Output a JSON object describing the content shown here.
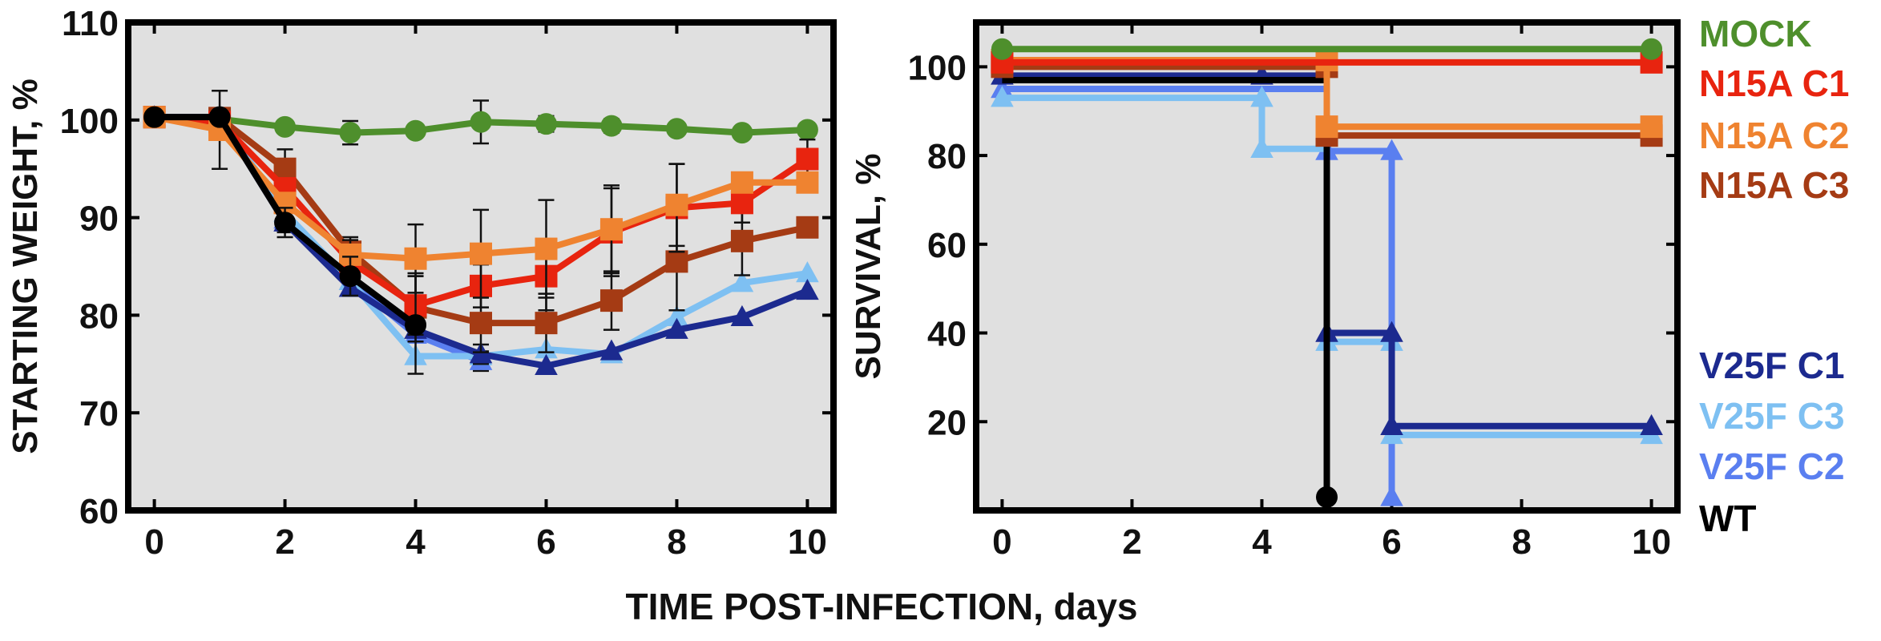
{
  "figure": {
    "shared_xlabel": "TIME POST-INFECTION, days"
  },
  "colors": {
    "MOCK": "#4e8f2c",
    "N15A C1": "#e8240f",
    "N15A C2": "#ef8330",
    "N15A C3": "#a53b14",
    "V25F C1": "#1c2a8f",
    "V25F C3": "#7ec0f2",
    "V25F C2": "#5a7ff0",
    "WT": "#000000",
    "panel_bg": "#e0e0e0"
  },
  "chart_data": [
    {
      "type": "line",
      "ylabel": "STARTING WEIGHT, %",
      "xlim": [
        -0.4,
        10.4
      ],
      "ylim": [
        60,
        110
      ],
      "xticks": [
        0,
        2,
        4,
        6,
        8,
        10
      ],
      "yticks": [
        60,
        70,
        80,
        90,
        100,
        110
      ],
      "grid": false,
      "series": [
        {
          "name": "MOCK",
          "marker": "circle",
          "x": [
            0,
            1,
            2,
            3,
            4,
            5,
            6,
            7,
            8,
            9,
            10
          ],
          "y": [
            100.3,
            100.1,
            99.3,
            98.7,
            98.9,
            99.8,
            99.6,
            99.4,
            99.1,
            98.7,
            99.0
          ],
          "err": [
            0,
            0,
            0.6,
            1.2,
            0,
            2.2,
            0.8,
            0.7,
            0.6,
            0.6,
            0.4
          ]
        },
        {
          "name": "N15A C1",
          "marker": "square",
          "x": [
            0,
            1,
            2,
            3,
            4,
            5,
            6,
            7,
            8,
            9,
            10
          ],
          "y": [
            100.3,
            99.8,
            93.0,
            85.5,
            81.0,
            83.0,
            84.0,
            88.5,
            91.0,
            91.5,
            96.0
          ],
          "err": [
            0,
            0,
            1.0,
            1.5,
            3.0,
            2.2,
            3.5,
            4.5,
            4.5,
            2.0,
            2.0
          ]
        },
        {
          "name": "N15A C2",
          "marker": "square",
          "x": [
            0,
            1,
            2,
            3,
            4,
            5,
            6,
            7,
            8,
            9,
            10
          ],
          "y": [
            100.3,
            99.0,
            91.5,
            86.2,
            85.8,
            86.3,
            86.8,
            88.8,
            91.3,
            93.6,
            93.6
          ],
          "err": [
            0,
            4.0,
            0.8,
            1.5,
            3.5,
            4.5,
            5.0,
            4.5,
            4.2,
            0,
            1.0
          ]
        },
        {
          "name": "N15A C3",
          "marker": "square",
          "x": [
            0,
            1,
            2,
            3,
            4,
            5,
            6,
            7,
            8,
            9,
            10
          ],
          "y": [
            100.3,
            100.2,
            95.0,
            86.5,
            80.8,
            79.2,
            79.2,
            81.5,
            85.5,
            87.6,
            89.0
          ],
          "err": [
            0,
            0,
            2.0,
            1.5,
            3.5,
            3.0,
            3.0,
            3.0,
            5.0,
            3.5,
            0
          ]
        },
        {
          "name": "V25F C1",
          "marker": "triangle",
          "x": [
            0,
            1,
            2,
            3,
            4,
            5,
            6,
            7,
            8,
            9,
            10
          ],
          "y": [
            100.3,
            100.3,
            89.5,
            82.8,
            78.5,
            76.0,
            74.8,
            76.3,
            78.5,
            79.8,
            82.5
          ],
          "err": [
            0,
            0,
            1.0,
            0.8,
            0,
            1.0,
            0,
            0,
            0,
            0,
            0
          ]
        },
        {
          "name": "V25F C3",
          "marker": "triangle",
          "x": [
            0,
            1,
            2,
            3,
            4,
            5,
            6,
            7,
            8,
            9,
            10
          ],
          "y": [
            100.3,
            100.3,
            90.5,
            83.5,
            75.8,
            75.8,
            76.5,
            76.0,
            79.8,
            83.3,
            84.3
          ],
          "err": [
            0,
            0,
            0,
            0,
            0,
            0,
            0,
            0,
            0,
            0,
            0
          ]
        },
        {
          "name": "V25F C2",
          "marker": "triangle",
          "x": [
            0,
            1,
            2,
            3,
            4,
            5
          ],
          "y": [
            100.3,
            100.3,
            89.8,
            83.5,
            78.0,
            75.3
          ],
          "err": [
            0,
            0,
            0,
            0,
            0,
            1.0
          ]
        },
        {
          "name": "WT",
          "marker": "circle",
          "x": [
            0,
            1,
            2,
            3,
            4
          ],
          "y": [
            100.3,
            100.3,
            89.5,
            84.0,
            79.0
          ],
          "err": [
            0,
            0,
            1.5,
            2.0,
            5.0
          ]
        }
      ]
    },
    {
      "type": "line",
      "ylabel": "SURVIVAL, %",
      "xlim": [
        -0.4,
        10.4
      ],
      "ylim": [
        0,
        110
      ],
      "xticks": [
        0,
        2,
        4,
        6,
        8,
        10
      ],
      "yticks": [
        20,
        40,
        60,
        80,
        100
      ],
      "grid": false,
      "step": true,
      "legend_position": "right",
      "series": [
        {
          "name": "MOCK",
          "marker": "circle",
          "path": [
            [
              0,
              104
            ],
            [
              10,
              104
            ]
          ],
          "points": [
            [
              0,
              104
            ],
            [
              10,
              104
            ]
          ]
        },
        {
          "name": "N15A C1",
          "marker": "square",
          "path": [
            [
              0,
              101
            ],
            [
              10,
              101
            ]
          ],
          "points": [
            [
              0,
              101
            ],
            [
              10,
              101
            ]
          ]
        },
        {
          "name": "N15A C2",
          "marker": "square",
          "path": [
            [
              0,
              101.5
            ],
            [
              5,
              101.5
            ],
            [
              5,
              86.5
            ],
            [
              10,
              86.5
            ]
          ],
          "points": [
            [
              0,
              101.5
            ],
            [
              5,
              101.5
            ],
            [
              5,
              86.5
            ],
            [
              10,
              86.5
            ]
          ]
        },
        {
          "name": "N15A C3",
          "marker": "square",
          "path": [
            [
              0,
              100
            ],
            [
              5,
              100
            ],
            [
              5,
              84.5
            ],
            [
              10,
              84.5
            ]
          ],
          "points": [
            [
              0,
              100
            ],
            [
              5,
              100
            ],
            [
              5,
              84.5
            ],
            [
              10,
              84.5
            ]
          ]
        },
        {
          "name": "V25F C1",
          "marker": "triangle",
          "path": [
            [
              0,
              98
            ],
            [
              4,
              98
            ],
            [
              5,
              98
            ],
            [
              5,
              40
            ],
            [
              6,
              40
            ],
            [
              6,
              19
            ],
            [
              10,
              19
            ]
          ],
          "points": [
            [
              0,
              98
            ],
            [
              4,
              98
            ],
            [
              5,
              40
            ],
            [
              6,
              40
            ],
            [
              6,
              19
            ],
            [
              10,
              19
            ]
          ]
        },
        {
          "name": "V25F C3",
          "marker": "triangle",
          "path": [
            [
              0,
              93
            ],
            [
              4,
              93
            ],
            [
              4,
              81.5
            ],
            [
              5,
              81.5
            ],
            [
              5,
              38
            ],
            [
              6,
              38
            ],
            [
              6,
              17
            ],
            [
              10,
              17
            ]
          ],
          "points": [
            [
              0,
              93
            ],
            [
              4,
              93
            ],
            [
              4,
              81.5
            ],
            [
              5,
              38
            ],
            [
              6,
              38
            ],
            [
              6,
              17
            ],
            [
              10,
              17
            ]
          ]
        },
        {
          "name": "V25F C2",
          "marker": "triangle",
          "path": [
            [
              0,
              95
            ],
            [
              5,
              95
            ],
            [
              5,
              81
            ],
            [
              6,
              81
            ],
            [
              6,
              3
            ]
          ],
          "points": [
            [
              0,
              95
            ],
            [
              5,
              81
            ],
            [
              6,
              81
            ],
            [
              6,
              3
            ]
          ]
        },
        {
          "name": "WT",
          "marker": "circle",
          "path": [
            [
              0,
              97
            ],
            [
              5,
              97
            ],
            [
              5,
              3
            ]
          ],
          "points": [
            [
              5,
              3
            ]
          ]
        }
      ],
      "legend": [
        {
          "label": "MOCK",
          "color_key": "MOCK"
        },
        {
          "label": "N15A C1",
          "color_key": "N15A C1"
        },
        {
          "label": "N15A C2",
          "color_key": "N15A C2"
        },
        {
          "label": "N15A C3",
          "color_key": "N15A C3"
        },
        {
          "label": "V25F C1",
          "color_key": "V25F C1"
        },
        {
          "label": "V25F C3",
          "color_key": "V25F C3"
        },
        {
          "label": "V25F C2",
          "color_key": "V25F C2"
        },
        {
          "label": "WT",
          "color_key": "WT"
        }
      ]
    }
  ]
}
